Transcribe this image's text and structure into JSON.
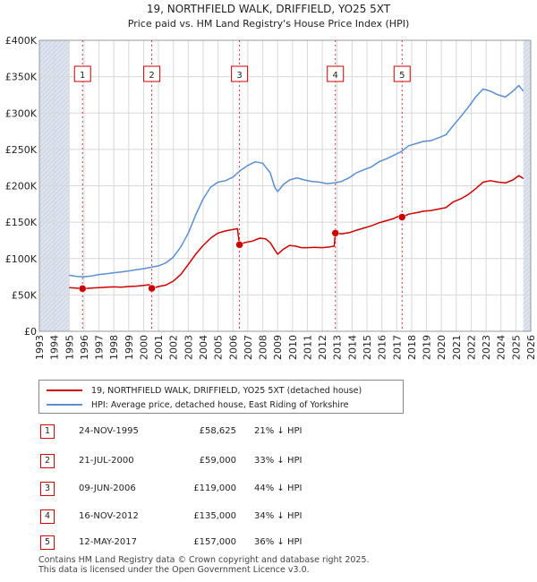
{
  "chart_data": {
    "type": "line",
    "title": "19, NORTHFIELD WALK, DRIFFIELD, YO25 5XT",
    "subtitle": "Price paid vs. HM Land Registry's House Price Index (HPI)",
    "xlabel": "",
    "ylabel": "",
    "xlim": [
      1993,
      2026
    ],
    "ylim": [
      0,
      400000
    ],
    "x_ticks": [
      "1993",
      "1994",
      "1995",
      "1996",
      "1997",
      "1998",
      "1999",
      "2000",
      "2001",
      "2002",
      "2003",
      "2004",
      "2005",
      "2006",
      "2007",
      "2008",
      "2009",
      "2010",
      "2011",
      "2012",
      "2013",
      "2014",
      "2015",
      "2016",
      "2017",
      "2018",
      "2019",
      "2020",
      "2021",
      "2022",
      "2023",
      "2024",
      "2025",
      "2026"
    ],
    "y_ticks": [
      {
        "value": 0,
        "label": "£0"
      },
      {
        "value": 50000,
        "label": "£50K"
      },
      {
        "value": 100000,
        "label": "£100K"
      },
      {
        "value": 150000,
        "label": "£150K"
      },
      {
        "value": 200000,
        "label": "£200K"
      },
      {
        "value": 250000,
        "label": "£250K"
      },
      {
        "value": 300000,
        "label": "£300K"
      },
      {
        "value": 350000,
        "label": "£350K"
      },
      {
        "value": 400000,
        "label": "£400K"
      }
    ],
    "grid": true,
    "data_range": [
      1995.0,
      2025.5
    ],
    "series": [
      {
        "name": "19, NORTHFIELD WALK, DRIFFIELD, YO25 5XT (detached house)",
        "color": "#cc0000",
        "points": [
          [
            1995.0,
            60000
          ],
          [
            1995.5,
            59500
          ],
          [
            1995.9,
            58625
          ],
          [
            1996.5,
            59500
          ],
          [
            1997.0,
            60000
          ],
          [
            1997.5,
            60500
          ],
          [
            1998.0,
            61000
          ],
          [
            1998.5,
            60500
          ],
          [
            1999.0,
            61500
          ],
          [
            1999.5,
            62000
          ],
          [
            2000.0,
            63000
          ],
          [
            2000.4,
            64000
          ],
          [
            2000.55,
            59000
          ],
          [
            2001.0,
            61500
          ],
          [
            2001.5,
            63500
          ],
          [
            2002.0,
            69000
          ],
          [
            2002.5,
            78000
          ],
          [
            2003.0,
            92000
          ],
          [
            2003.5,
            106000
          ],
          [
            2004.0,
            118000
          ],
          [
            2004.5,
            128000
          ],
          [
            2005.0,
            135000
          ],
          [
            2005.5,
            138000
          ],
          [
            2006.0,
            140000
          ],
          [
            2006.3,
            141000
          ],
          [
            2006.44,
            119000
          ],
          [
            2006.8,
            122000
          ],
          [
            2007.3,
            124000
          ],
          [
            2007.8,
            128000
          ],
          [
            2008.2,
            127000
          ],
          [
            2008.5,
            122000
          ],
          [
            2008.8,
            112000
          ],
          [
            2009.0,
            106000
          ],
          [
            2009.4,
            113000
          ],
          [
            2009.8,
            118000
          ],
          [
            2010.2,
            117000
          ],
          [
            2010.6,
            115000
          ],
          [
            2011.0,
            115000
          ],
          [
            2011.5,
            115500
          ],
          [
            2012.0,
            115000
          ],
          [
            2012.5,
            116000
          ],
          [
            2012.8,
            117000
          ],
          [
            2012.88,
            135000
          ],
          [
            2013.3,
            134000
          ],
          [
            2013.8,
            135500
          ],
          [
            2014.3,
            139000
          ],
          [
            2014.8,
            142000
          ],
          [
            2015.3,
            145000
          ],
          [
            2015.8,
            149000
          ],
          [
            2016.3,
            152000
          ],
          [
            2016.8,
            155000
          ],
          [
            2017.2,
            159000
          ],
          [
            2017.36,
            157000
          ],
          [
            2017.8,
            161000
          ],
          [
            2018.3,
            163000
          ],
          [
            2018.8,
            165000
          ],
          [
            2019.3,
            166000
          ],
          [
            2019.8,
            168000
          ],
          [
            2020.3,
            170000
          ],
          [
            2020.8,
            178000
          ],
          [
            2021.3,
            182000
          ],
          [
            2021.8,
            188000
          ],
          [
            2022.3,
            196000
          ],
          [
            2022.8,
            205000
          ],
          [
            2023.3,
            207000
          ],
          [
            2023.8,
            205000
          ],
          [
            2024.3,
            204000
          ],
          [
            2024.8,
            208000
          ],
          [
            2025.2,
            214000
          ],
          [
            2025.5,
            210000
          ]
        ]
      },
      {
        "name": "HPI: Average price, detached house, East Riding of Yorkshire",
        "color": "#5b8fd0",
        "points": [
          [
            1995.0,
            77000
          ],
          [
            1995.5,
            75500
          ],
          [
            1996.0,
            75000
          ],
          [
            1996.5,
            76000
          ],
          [
            1997.0,
            78000
          ],
          [
            1997.5,
            79000
          ],
          [
            1998.0,
            80500
          ],
          [
            1998.5,
            81500
          ],
          [
            1999.0,
            83000
          ],
          [
            1999.5,
            84500
          ],
          [
            2000.0,
            86000
          ],
          [
            2000.5,
            88000
          ],
          [
            2001.0,
            90000
          ],
          [
            2001.5,
            94000
          ],
          [
            2002.0,
            102000
          ],
          [
            2002.5,
            116000
          ],
          [
            2003.0,
            135000
          ],
          [
            2003.5,
            160000
          ],
          [
            2004.0,
            182000
          ],
          [
            2004.5,
            198000
          ],
          [
            2005.0,
            205000
          ],
          [
            2005.5,
            207000
          ],
          [
            2006.0,
            212000
          ],
          [
            2006.5,
            221000
          ],
          [
            2007.0,
            228000
          ],
          [
            2007.5,
            233000
          ],
          [
            2008.0,
            231000
          ],
          [
            2008.5,
            218000
          ],
          [
            2008.8,
            198000
          ],
          [
            2009.0,
            192000
          ],
          [
            2009.4,
            202000
          ],
          [
            2009.8,
            208000
          ],
          [
            2010.3,
            211000
          ],
          [
            2010.8,
            208000
          ],
          [
            2011.3,
            206000
          ],
          [
            2011.8,
            205000
          ],
          [
            2012.3,
            203000
          ],
          [
            2012.8,
            204000
          ],
          [
            2013.3,
            206000
          ],
          [
            2013.8,
            211000
          ],
          [
            2014.3,
            218000
          ],
          [
            2014.8,
            222000
          ],
          [
            2015.3,
            226000
          ],
          [
            2015.8,
            233000
          ],
          [
            2016.3,
            237000
          ],
          [
            2016.8,
            242000
          ],
          [
            2017.3,
            247000
          ],
          [
            2017.8,
            255000
          ],
          [
            2018.3,
            258000
          ],
          [
            2018.8,
            261000
          ],
          [
            2019.3,
            262000
          ],
          [
            2019.8,
            266000
          ],
          [
            2020.3,
            270000
          ],
          [
            2020.8,
            283000
          ],
          [
            2021.3,
            295000
          ],
          [
            2021.8,
            308000
          ],
          [
            2022.3,
            322000
          ],
          [
            2022.8,
            333000
          ],
          [
            2023.3,
            330000
          ],
          [
            2023.8,
            325000
          ],
          [
            2024.3,
            322000
          ],
          [
            2024.8,
            330000
          ],
          [
            2025.2,
            338000
          ],
          [
            2025.5,
            330000
          ]
        ]
      }
    ],
    "sales": [
      {
        "label": "1",
        "x": 1995.9,
        "price": 58625
      },
      {
        "label": "2",
        "x": 2000.55,
        "price": 59000
      },
      {
        "label": "3",
        "x": 2006.44,
        "price": 119000
      },
      {
        "label": "4",
        "x": 2012.88,
        "price": 135000
      },
      {
        "label": "5",
        "x": 2017.36,
        "price": 157000
      }
    ]
  },
  "legend": {
    "property_label": "19, NORTHFIELD WALK, DRIFFIELD, YO25 5XT (detached house)",
    "hpi_label": "HPI: Average price, detached house, East Riding of Yorkshire"
  },
  "sales_table": [
    {
      "num": "1",
      "date": "24-NOV-1995",
      "price": "£58,625",
      "hpi": "21% ↓ HPI"
    },
    {
      "num": "2",
      "date": "21-JUL-2000",
      "price": "£59,000",
      "hpi": "33% ↓ HPI"
    },
    {
      "num": "3",
      "date": "09-JUN-2006",
      "price": "£119,000",
      "hpi": "44% ↓ HPI"
    },
    {
      "num": "4",
      "date": "16-NOV-2012",
      "price": "£135,000",
      "hpi": "34% ↓ HPI"
    },
    {
      "num": "5",
      "date": "12-MAY-2017",
      "price": "£157,000",
      "hpi": "36% ↓ HPI"
    }
  ],
  "footer": {
    "line1": "Contains HM Land Registry data © Crown copyright and database right 2025.",
    "line2": "This data is licensed under the Open Government Licence v3.0."
  },
  "colors": {
    "property": "#cc0000",
    "hpi": "#5b8fd0",
    "shade": "#dde4f0"
  }
}
